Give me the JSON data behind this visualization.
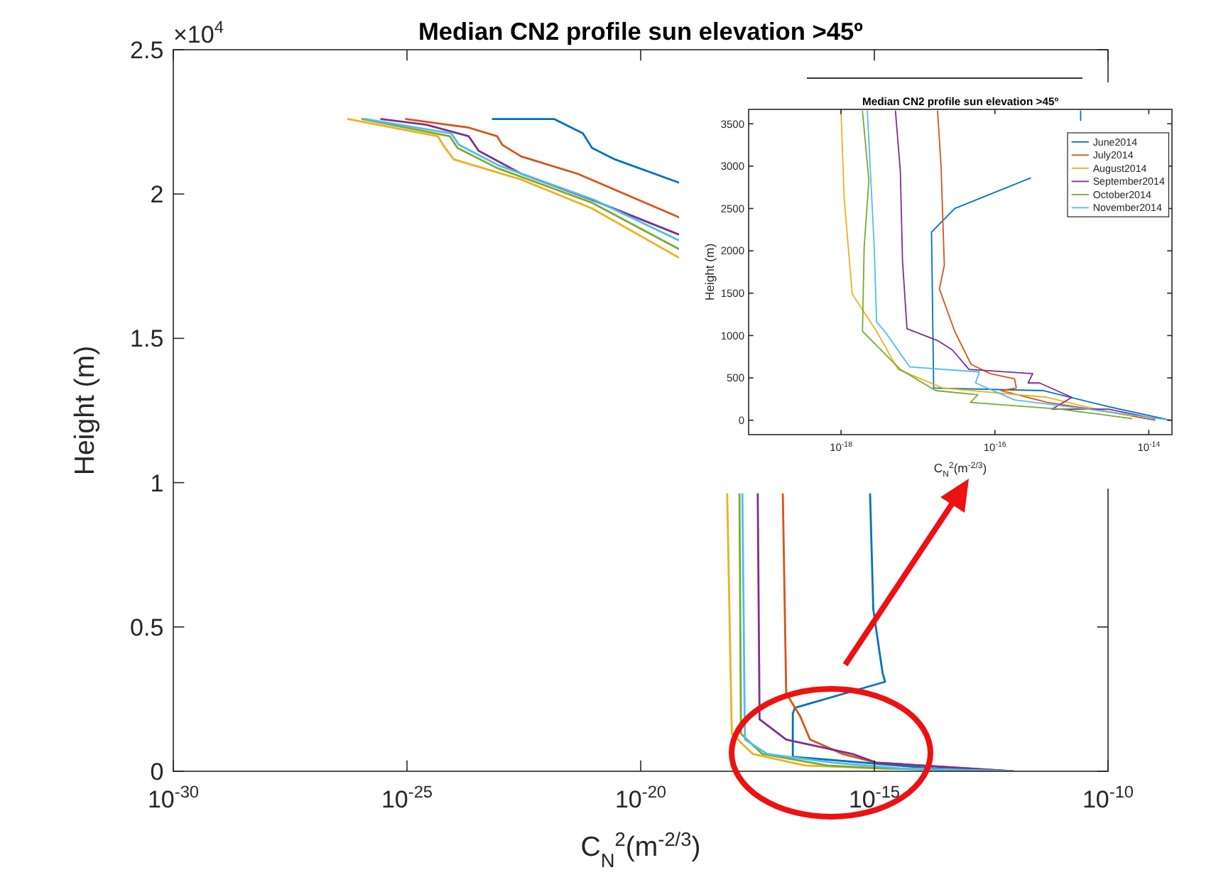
{
  "chart_data": [
    {
      "type": "line",
      "title": "Median CN2 profile sun elevation >45º",
      "xlabel": "C$_{N}$$^{2}$(m$^{-2/3}$)",
      "ylabel": "Height (m)",
      "log": "x",
      "xlim": [
        1e-30,
        1e-10
      ],
      "xticks": [
        {
          "value": 1e-30,
          "label": "10$^{-30}$"
        },
        {
          "value": 1e-25,
          "label": "10$^{-25}$"
        },
        {
          "value": 1e-20,
          "label": "10$^{-20}$"
        },
        {
          "value": 1e-15,
          "label": "10$^{-15}$"
        },
        {
          "value": 1e-10,
          "label": "10$^{-10}$"
        }
      ],
      "ylim": [
        0,
        2.5
      ],
      "yticks": [
        0,
        0.5,
        1,
        1.5,
        2,
        2.5
      ],
      "annotations": [
        "×10$^{4}$"
      ],
      "series": [
        {
          "color": "#0072bd",
          "x": [
            6.8e-24,
            1.4e-22,
            5.8e-22,
            9.1e-22,
            2.8e-21,
            6.5e-20,
            null,
            8.1e-16,
            9.5e-16,
            1.5e-15,
            1.7e-15,
            2e-17,
            1.8e-17,
            1.8e-17,
            1.8e-14,
            9.1e-13
          ],
          "values": [
            2.26,
            2.26,
            2.21,
            2.16,
            2.12,
            2.04,
            null,
            0.96,
            0.56,
            0.34,
            0.31,
            0.22,
            0.2,
            0.05,
            0.01,
            0
          ]
        },
        {
          "color": "#d95319",
          "x": [
            9.5e-26,
            2.1e-24,
            8.5e-24,
            1.1e-23,
            2.8e-23,
            4.5e-22,
            6.5e-20,
            null,
            1.1e-17,
            1.3e-17,
            2.6e-17,
            4.2e-17,
            2.1e-16,
            1.1e-15,
            9.1e-13
          ],
          "values": [
            2.26,
            2.23,
            2.2,
            2.17,
            2.13,
            2.07,
            1.92,
            null,
            0.96,
            0.27,
            0.19,
            0.11,
            0.06,
            0.03,
            0
          ]
        },
        {
          "color": "#edb120",
          "x": [
            5.5e-27,
            4.6e-25,
            5.9e-25,
            1e-24,
            2.8e-23,
            9.1e-22,
            6.5e-20,
            null,
            7.1e-19,
            8.9e-19,
            2.5e-18,
            3.3e-17,
            1.1e-15,
            9.1e-13
          ],
          "values": [
            2.26,
            2.2,
            2.17,
            2.12,
            2.05,
            1.95,
            1.78,
            null,
            0.96,
            0.13,
            0.06,
            0.02,
            0.01,
            0
          ]
        },
        {
          "color": "#7e2f8e",
          "x": [
            2.8e-26,
            2.6e-25,
            2.1e-24,
            3.4e-24,
            2.8e-23,
            9.1e-22,
            6.5e-20,
            null,
            3.2e-18,
            3.5e-18,
            1.3e-17,
            3.4e-16,
            1.1e-15,
            9.3e-13
          ],
          "values": [
            2.26,
            2.24,
            2.2,
            2.15,
            2.07,
            1.98,
            1.86,
            null,
            0.96,
            0.18,
            0.11,
            0.06,
            0.03,
            0
          ]
        },
        {
          "color": "#77ac30",
          "x": [
            1.1e-26,
            8.3e-25,
            1.2e-24,
            8.5e-24,
            9.1e-22,
            6.5e-20,
            null,
            1.3e-18,
            1.4e-18,
            4e-18,
            1e-16,
            1.4e-15,
            9.1e-13
          ],
          "values": [
            2.26,
            2.2,
            2.16,
            2.09,
            1.97,
            1.81,
            null,
            0.96,
            0.13,
            0.06,
            0.02,
            0.01,
            0
          ]
        },
        {
          "color": "#4dbeee",
          "x": [
            1.3e-26,
            8.9e-25,
            1.3e-24,
            8.9e-24,
            1e-21,
            6.5e-20,
            null,
            1.5e-18,
            1.7e-18,
            5.1e-18,
            1.3e-16,
            3.5e-15,
            9.1e-13
          ],
          "values": [
            2.26,
            2.21,
            2.17,
            2.1,
            1.98,
            1.84,
            null,
            0.96,
            0.11,
            0.06,
            0.03,
            0.01,
            0
          ]
        }
      ]
    },
    {
      "type": "line",
      "title": "Median CN2 profile sun elevation >45º",
      "xlabel": "C$_{N}$$^{2}$(m$^{-2/3}$)",
      "ylabel": "Height (m)",
      "log": "x",
      "xlim": [
        6.3e-20,
        2e-14
      ],
      "xticks": [
        {
          "value": 1e-18,
          "label": "10$^{-18}$"
        },
        {
          "value": 1e-16,
          "label": "10$^{-16}$"
        },
        {
          "value": 1e-14,
          "label": "10$^{-14}$"
        }
      ],
      "ylim": [
        -170,
        3670
      ],
      "yticks": [
        0,
        500,
        1000,
        1500,
        2000,
        2500,
        3000,
        3500
      ],
      "legend": "top right",
      "series": [
        {
          "name": "June2014",
          "color": "#0072bd",
          "x": [
            1.3e-15,
            1.3e-15,
            null,
            2.9e-16,
            3e-17,
            1.5e-17,
            1.6e-17,
            4.2e-16,
            3e-15,
            1.9e-14
          ],
          "values": [
            3650,
            3540,
            null,
            2860,
            2500,
            2220,
            380,
            350,
            160,
            0
          ]
        },
        {
          "name": "July2014",
          "color": "#d95319",
          "x": [
            1.8e-17,
            2e-17,
            2.2e-17,
            1.9e-17,
            3e-17,
            4.9e-17,
            8.7e-17,
            1.8e-16,
            1.9e-16,
            1.2e-16,
            4.8e-16,
            3e-15,
            1.2e-14
          ],
          "values": [
            3650,
            2980,
            1830,
            1550,
            1050,
            660,
            550,
            490,
            380,
            350,
            210,
            100,
            0
          ]
        },
        {
          "name": "August2014",
          "color": "#edb120",
          "x": [
            1e-18,
            1.1e-18,
            1.4e-18,
            2.9e-18,
            5.5e-18,
            2.1e-17,
            4.8e-16,
            1.5e-15,
            6e-15
          ],
          "values": [
            3650,
            2610,
            1490,
            1050,
            600,
            380,
            270,
            160,
            50
          ]
        },
        {
          "name": "September2014",
          "color": "#7e2f8e",
          "x": [
            5.1e-18,
            5.9e-18,
            6.3e-18,
            7.2e-18,
            1.8e-17,
            2.8e-17,
            4.6e-17,
            3.1e-16,
            2.7e-16,
            3.8e-16,
            1e-15,
            5.5e-16,
            3e-15,
            1.2e-14
          ],
          "values": [
            3650,
            2940,
            1880,
            1080,
            940,
            830,
            600,
            550,
            440,
            440,
            270,
            130,
            130,
            20
          ]
        },
        {
          "name": "October2014",
          "color": "#77ac30",
          "x": [
            1.9e-18,
            2.3e-18,
            2e-18,
            1.9e-18,
            5.9e-18,
            1.7e-17,
            6e-17,
            4.8e-17,
            7.2e-16,
            6e-15
          ],
          "values": [
            3650,
            2830,
            2050,
            1050,
            600,
            350,
            300,
            210,
            130,
            20
          ]
        },
        {
          "name": "November2014",
          "color": "#4dbeee",
          "x": [
            2.2e-18,
            2.7e-18,
            2.9e-18,
            3.7e-18,
            7.8e-18,
            6.3e-17,
            5.6e-17,
            1.8e-16,
            3e-15,
            1.9e-14
          ],
          "values": [
            3650,
            2050,
            1160,
            1050,
            630,
            570,
            440,
            240,
            100,
            0
          ]
        }
      ]
    }
  ]
}
